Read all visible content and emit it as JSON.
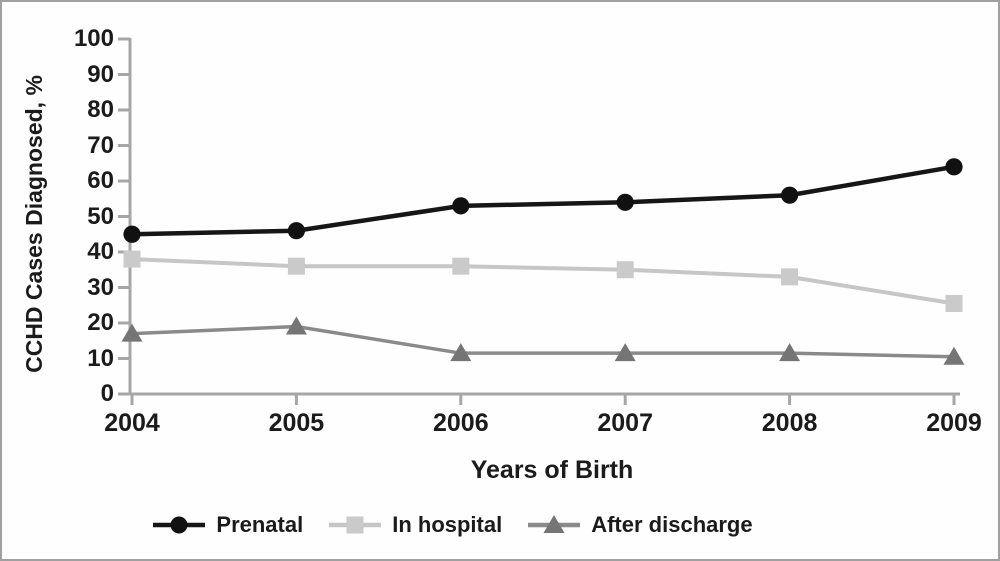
{
  "figure": {
    "background": "#fefefe",
    "border_color": "#a0a0a0"
  },
  "chart_data": {
    "type": "line",
    "title": "",
    "ylabel": "CCHD Cases Diagnosed, %",
    "xlabel": "Years of Birth",
    "x": [
      2004,
      2005,
      2006,
      2007,
      2008,
      2009
    ],
    "xtick_labels": [
      "2004",
      "2005",
      "2006",
      "2007",
      "2008",
      "2009"
    ],
    "ytick_labels": [
      "100",
      "90",
      "80",
      "70",
      "60",
      "50",
      "40",
      "30",
      "20",
      "10",
      "0"
    ],
    "ylim": [
      0,
      100
    ],
    "ytick_interval": 10,
    "grid": false,
    "legend_position": "bottom-center",
    "axis_color": "#a6a6a6",
    "text_color": "#1b1b1b",
    "series": [
      {
        "name": "Prenatal",
        "marker": "circle",
        "line_color": "#161616",
        "marker_color": "#111111",
        "values": [
          45,
          46,
          53,
          54,
          56,
          64
        ]
      },
      {
        "name": "In hospital",
        "marker": "square",
        "line_color": "#c6c6c6",
        "marker_color": "#cacaca",
        "values": [
          38,
          36,
          36,
          35,
          33,
          25.5
        ]
      },
      {
        "name": "After discharge",
        "marker": "triangle",
        "line_color": "#8a8a8a",
        "marker_color": "#757575",
        "values": [
          17,
          19,
          11.5,
          11.5,
          11.5,
          10.5
        ]
      }
    ]
  }
}
